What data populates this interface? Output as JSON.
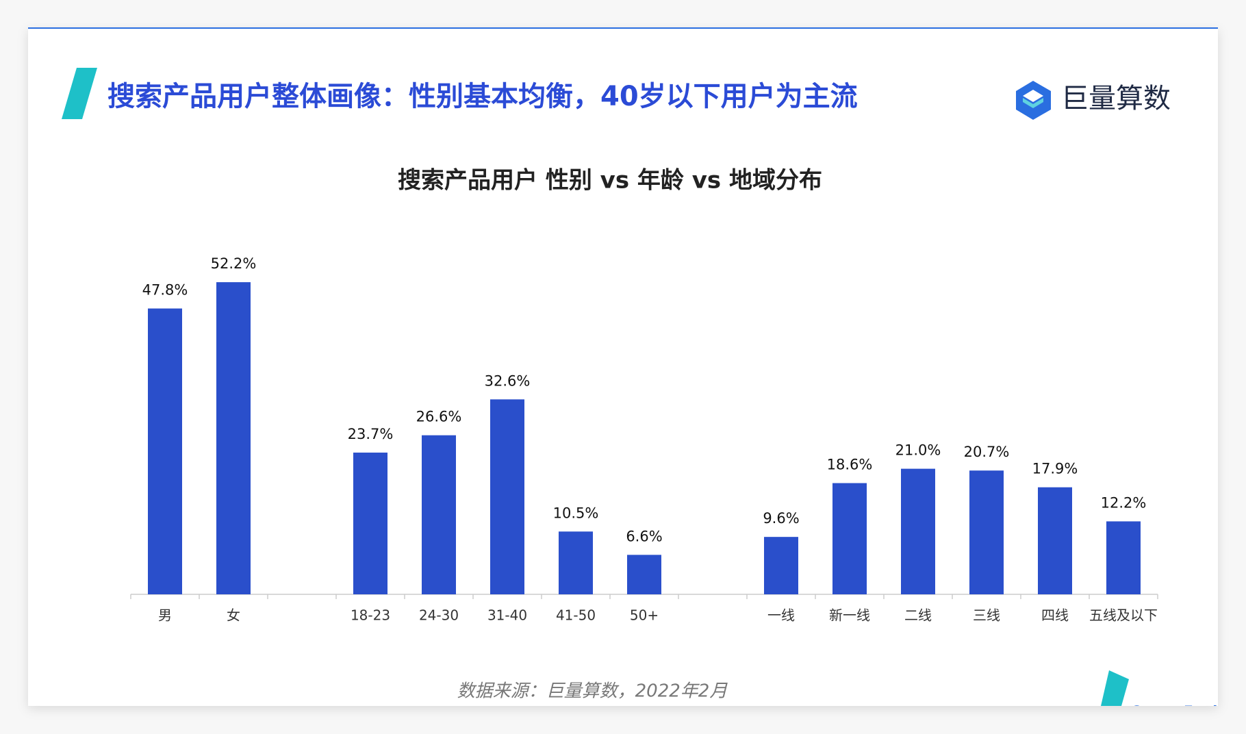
{
  "header": {
    "title": "搜索产品用户整体画像：性别基本均衡，40岁以下用户为主流",
    "logo": "巨量算数"
  },
  "chart_data": {
    "type": "bar",
    "title": "搜索产品用户 性别 vs 年龄 vs 地域分布",
    "categories": [
      "男",
      "女",
      null,
      "18-23",
      "24-30",
      "31-40",
      "41-50",
      "50+",
      null,
      "一线",
      "新一线",
      "二线",
      "三线",
      "四线",
      "五线及以下"
    ],
    "values": [
      47.8,
      52.2,
      null,
      23.7,
      26.6,
      32.6,
      10.5,
      6.6,
      null,
      9.6,
      18.6,
      21.0,
      20.7,
      17.9,
      12.2
    ],
    "value_labels": [
      "47.8%",
      "52.2%",
      null,
      "23.7%",
      "26.6%",
      "32.6%",
      "10.5%",
      "6.6%",
      null,
      "9.6%",
      "18.6%",
      "21.0%",
      "20.7%",
      "17.9%",
      "12.2%"
    ],
    "color": "#2a4fcb",
    "ylim": [
      0,
      60
    ]
  },
  "footer": {
    "source": "数据来源：巨量算数，2022年2月",
    "brand": "Ocean Engine"
  }
}
